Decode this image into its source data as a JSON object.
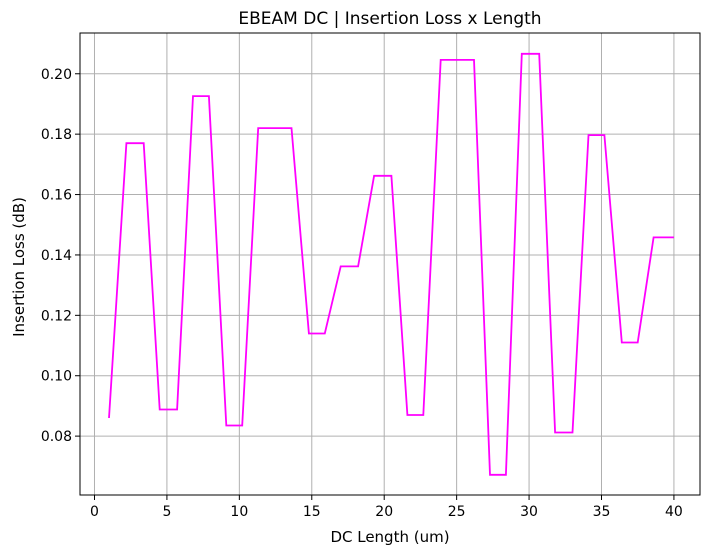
{
  "chart_data": {
    "type": "line",
    "title": "EBEAM DC | Insertion Loss x Length",
    "xlabel": "DC Length (um)",
    "ylabel": "Insertion Loss (dB)",
    "xlim": [
      -1,
      41.8
    ],
    "ylim": [
      0.0605,
      0.2135
    ],
    "xticks": [
      0,
      5,
      10,
      15,
      20,
      25,
      30,
      35,
      40
    ],
    "yticks": [
      0.08,
      0.1,
      0.12,
      0.14,
      0.16,
      0.18,
      0.2
    ],
    "ytick_labels": [
      "0.08",
      "0.10",
      "0.12",
      "0.14",
      "0.16",
      "0.18",
      "0.20"
    ],
    "grid": true,
    "legend": false,
    "color": "#ff00ff",
    "series": [
      {
        "x": [
          1,
          2.2,
          3.4,
          4.5,
          5.7,
          6.8,
          7.9,
          9.1,
          10.2,
          11.3,
          13.6,
          14.8,
          15.9,
          17.0,
          18.2,
          19.3,
          20.5,
          21.6,
          22.7,
          23.9,
          26.2,
          27.3,
          28.4,
          29.5,
          30.7,
          31.8,
          33.0,
          34.1,
          35.2,
          36.4,
          37.5,
          38.6,
          40.0
        ],
        "y": [
          0.086,
          0.177,
          0.177,
          0.0888,
          0.0888,
          0.1926,
          0.1926,
          0.0835,
          0.0835,
          0.182,
          0.182,
          0.114,
          0.114,
          0.1362,
          0.1362,
          0.1662,
          0.1662,
          0.087,
          0.087,
          0.2046,
          0.2046,
          0.0672,
          0.0672,
          0.2066,
          0.2066,
          0.0812,
          0.0812,
          0.1797,
          0.1797,
          0.111,
          0.111,
          0.1458,
          0.1458
        ]
      }
    ]
  }
}
